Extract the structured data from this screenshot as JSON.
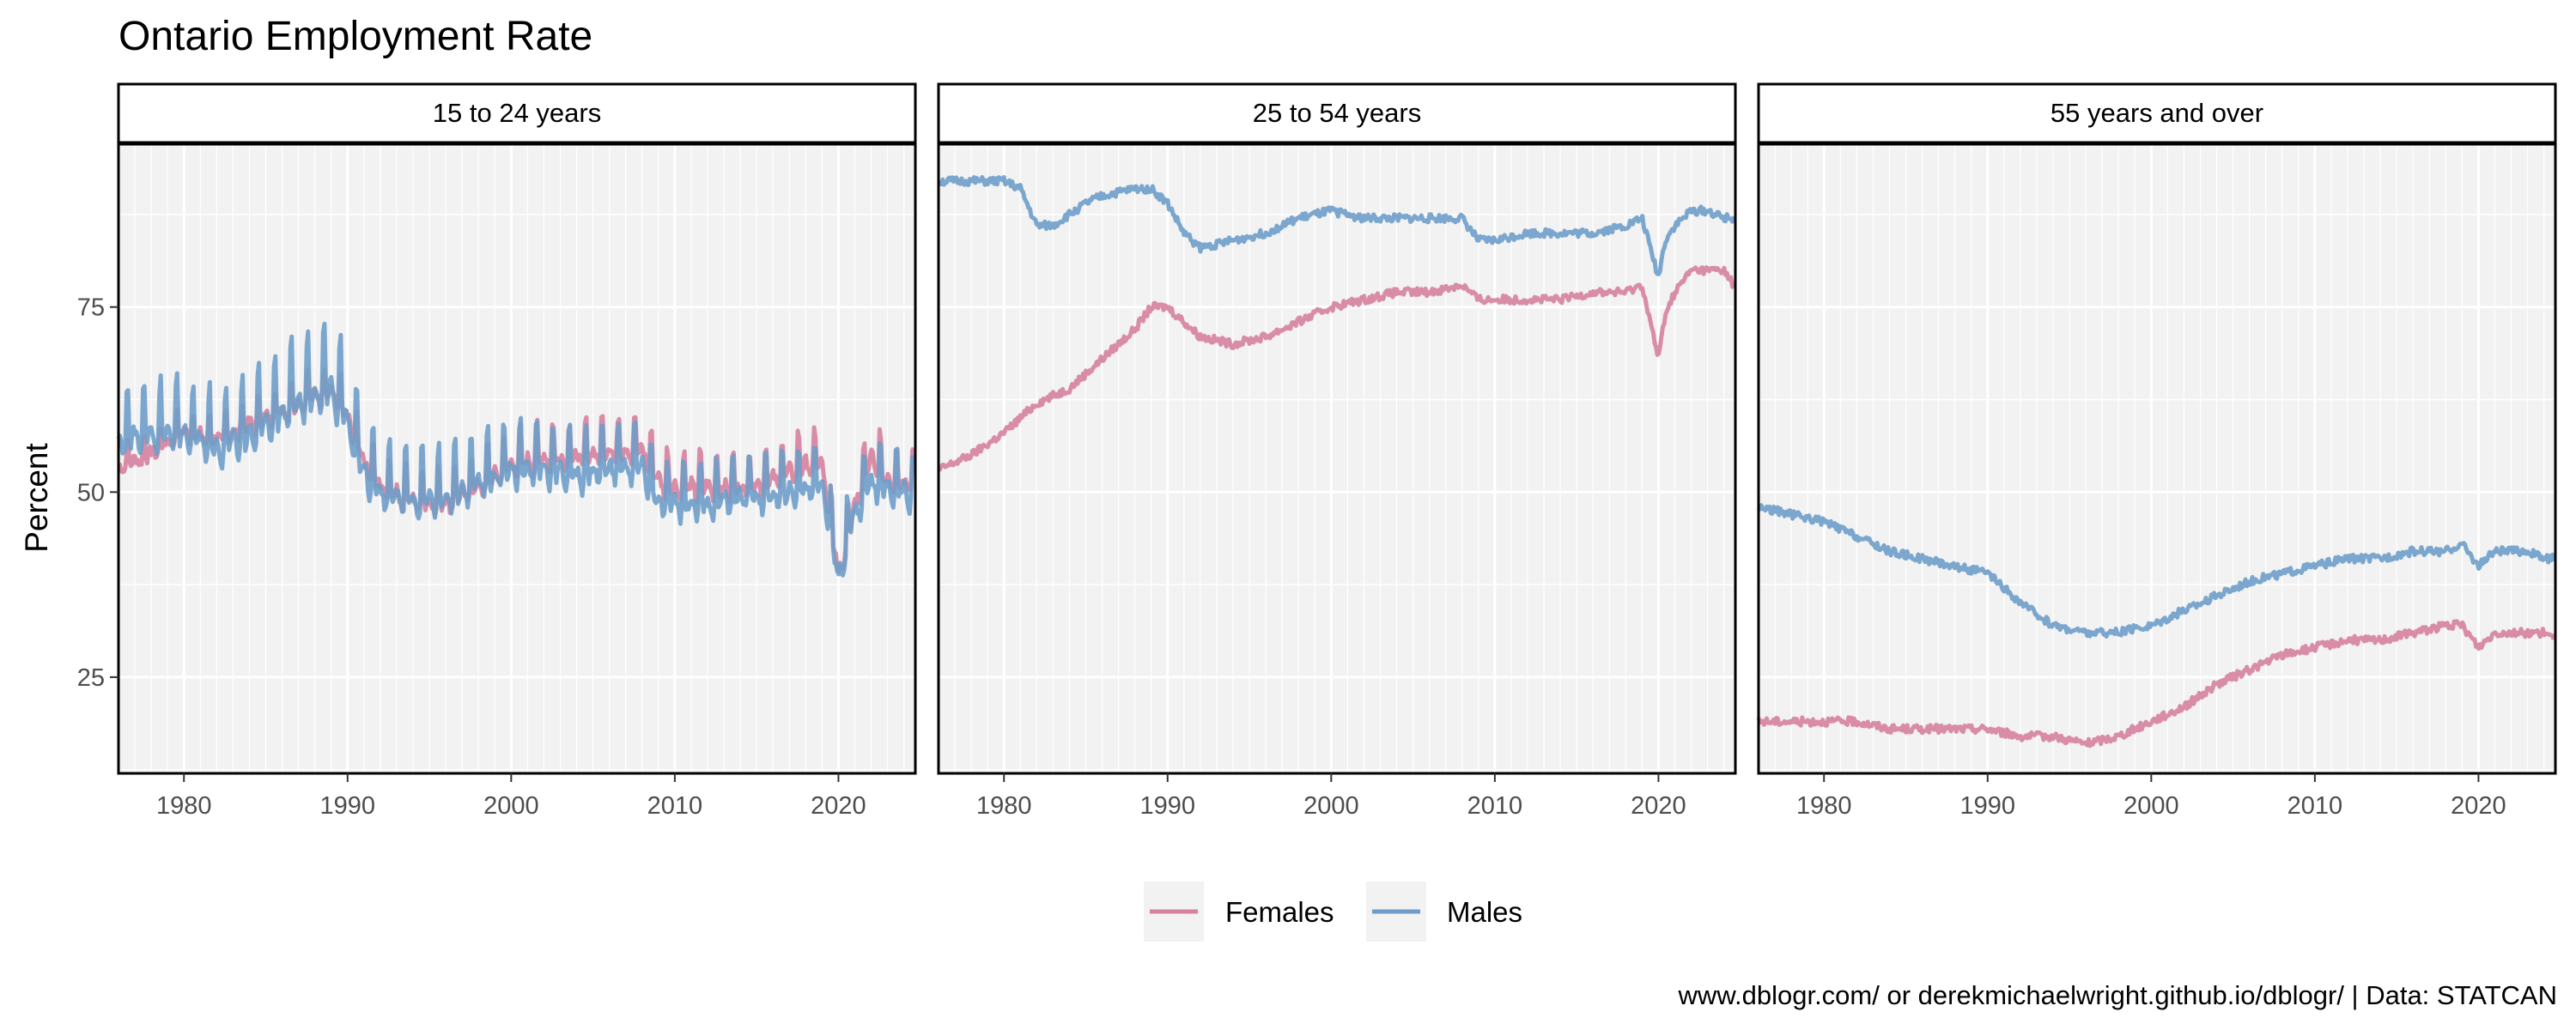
{
  "chart_data": {
    "type": "line",
    "title": "Ontario Employment Rate",
    "ylabel": "Percent",
    "xlabel": "",
    "caption": "www.dblogr.com/ or derekmichaelwright.github.io/dblogr/ | Data: STATCAN",
    "xlim": [
      1976,
      2024.7
    ],
    "ylim": [
      12,
      97
    ],
    "x_ticks": [
      1980,
      1990,
      2000,
      2010,
      2020
    ],
    "y_ticks": [
      25,
      50,
      75
    ],
    "grid": true,
    "legend_position": "bottom",
    "colors": {
      "Females": "#d6819f",
      "Males": "#6e9dc9",
      "panel_bg": "#f2f2f2",
      "grid": "#ffffff"
    },
    "legend": [
      "Females",
      "Males"
    ],
    "facets": [
      {
        "label": "15 to 24 years",
        "seasonal": true,
        "series": [
          {
            "name": "Females",
            "points": [
              [
                1976,
                54
              ],
              [
                1978,
                56
              ],
              [
                1980,
                59
              ],
              [
                1982,
                58
              ],
              [
                1984,
                60
              ],
              [
                1986,
                62
              ],
              [
                1988,
                64
              ],
              [
                1989,
                65
              ],
              [
                1990,
                61
              ],
              [
                1991,
                55
              ],
              [
                1992,
                52
              ],
              [
                1994,
                50
              ],
              [
                1996,
                50
              ],
              [
                1998,
                52
              ],
              [
                2000,
                55
              ],
              [
                2002,
                56
              ],
              [
                2004,
                56
              ],
              [
                2006,
                57
              ],
              [
                2008,
                57
              ],
              [
                2009,
                53
              ],
              [
                2010,
                52
              ],
              [
                2012,
                52
              ],
              [
                2014,
                52
              ],
              [
                2016,
                53
              ],
              [
                2018,
                55
              ],
              [
                2019,
                55
              ],
              [
                2020,
                40
              ],
              [
                2021,
                50
              ],
              [
                2022,
                56
              ],
              [
                2023,
                53
              ],
              [
                2024,
                52
              ],
              [
                2024.6,
                53
              ]
            ],
            "amplitude": [
              [
                1976,
                2.5
              ],
              [
                1990,
                4
              ],
              [
                1995,
                5
              ],
              [
                2010,
                5
              ],
              [
                2024.6,
                5
              ]
            ]
          },
          {
            "name": "Males",
            "points": [
              [
                1976,
                59
              ],
              [
                1978,
                60
              ],
              [
                1980,
                60
              ],
              [
                1982,
                58
              ],
              [
                1984,
                60
              ],
              [
                1986,
                63
              ],
              [
                1988,
                66
              ],
              [
                1989,
                67
              ],
              [
                1990,
                62
              ],
              [
                1991,
                55
              ],
              [
                1992,
                52
              ],
              [
                1994,
                51
              ],
              [
                1996,
                51
              ],
              [
                1998,
                53
              ],
              [
                2000,
                55
              ],
              [
                2002,
                55
              ],
              [
                2004,
                54
              ],
              [
                2006,
                55
              ],
              [
                2008,
                55
              ],
              [
                2009,
                50
              ],
              [
                2010,
                50
              ],
              [
                2012,
                50
              ],
              [
                2014,
                51
              ],
              [
                2016,
                51
              ],
              [
                2018,
                52
              ],
              [
                2019,
                53
              ],
              [
                2020,
                40
              ],
              [
                2021,
                49
              ],
              [
                2022,
                53
              ],
              [
                2023,
                52
              ],
              [
                2024,
                52
              ],
              [
                2024.6,
                51
              ]
            ],
            "amplitude": [
              [
                1976,
                7
              ],
              [
                1986,
                9
              ],
              [
                1989,
                10
              ],
              [
                1991,
                8
              ],
              [
                2000,
                7
              ],
              [
                2010,
                6
              ],
              [
                2024.6,
                6
              ]
            ]
          }
        ]
      },
      {
        "label": "25 to 54 years",
        "seasonal": false,
        "series": [
          {
            "name": "Females",
            "points": [
              [
                1976,
                53
              ],
              [
                1978,
                55
              ],
              [
                1980,
                58
              ],
              [
                1982,
                62
              ],
              [
                1984,
                64
              ],
              [
                1986,
                68
              ],
              [
                1988,
                72
              ],
              [
                1989,
                75
              ],
              [
                1990,
                75
              ],
              [
                1991,
                73
              ],
              [
                1992,
                71
              ],
              [
                1994,
                70
              ],
              [
                1996,
                71
              ],
              [
                1998,
                73
              ],
              [
                2000,
                75
              ],
              [
                2002,
                76
              ],
              [
                2004,
                77
              ],
              [
                2006,
                77
              ],
              [
                2008,
                78
              ],
              [
                2009,
                76
              ],
              [
                2010,
                76
              ],
              [
                2012,
                76
              ],
              [
                2014,
                76
              ],
              [
                2016,
                77
              ],
              [
                2018,
                77
              ],
              [
                2019,
                78
              ],
              [
                2020,
                68
              ],
              [
                2020.4,
                74
              ],
              [
                2021,
                77
              ],
              [
                2022,
                80
              ],
              [
                2023,
                80
              ],
              [
                2024,
                80
              ],
              [
                2024.6,
                78
              ]
            ]
          },
          {
            "name": "Males",
            "points": [
              [
                1976,
                92
              ],
              [
                1978,
                92
              ],
              [
                1980,
                92
              ],
              [
                1981,
                91
              ],
              [
                1982,
                86
              ],
              [
                1983,
                86
              ],
              [
                1985,
                89
              ],
              [
                1986,
                90
              ],
              [
                1988,
                91
              ],
              [
                1989,
                91
              ],
              [
                1990,
                89
              ],
              [
                1991,
                85
              ],
              [
                1992,
                83
              ],
              [
                1994,
                84
              ],
              [
                1996,
                85
              ],
              [
                1998,
                87
              ],
              [
                2000,
                88
              ],
              [
                2002,
                87
              ],
              [
                2004,
                87
              ],
              [
                2006,
                87
              ],
              [
                2008,
                87
              ],
              [
                2009,
                84
              ],
              [
                2010,
                84
              ],
              [
                2012,
                85
              ],
              [
                2014,
                85
              ],
              [
                2016,
                85
              ],
              [
                2018,
                86
              ],
              [
                2019,
                87
              ],
              [
                2020,
                79
              ],
              [
                2020.4,
                84
              ],
              [
                2021,
                86
              ],
              [
                2022,
                88
              ],
              [
                2023,
                88
              ],
              [
                2024,
                87
              ],
              [
                2024.6,
                87
              ]
            ]
          }
        ]
      },
      {
        "label": "55 years and over",
        "seasonal": false,
        "series": [
          {
            "name": "Females",
            "points": [
              [
                1976,
                19
              ],
              [
                1978,
                19
              ],
              [
                1980,
                19
              ],
              [
                1982,
                19
              ],
              [
                1984,
                18
              ],
              [
                1986,
                18
              ],
              [
                1988,
                18
              ],
              [
                1990,
                18
              ],
              [
                1992,
                17
              ],
              [
                1994,
                17
              ],
              [
                1996,
                16
              ],
              [
                1998,
                17
              ],
              [
                2000,
                19
              ],
              [
                2002,
                21
              ],
              [
                2004,
                24
              ],
              [
                2006,
                26
              ],
              [
                2008,
                28
              ],
              [
                2010,
                29
              ],
              [
                2012,
                30
              ],
              [
                2014,
                30
              ],
              [
                2016,
                31
              ],
              [
                2018,
                32
              ],
              [
                2019,
                32
              ],
              [
                2020,
                29
              ],
              [
                2021,
                31
              ],
              [
                2022,
                31
              ],
              [
                2023,
                31
              ],
              [
                2024,
                31
              ],
              [
                2024.6,
                30
              ]
            ]
          },
          {
            "name": "Males",
            "points": [
              [
                1976,
                48
              ],
              [
                1978,
                47
              ],
              [
                1980,
                46
              ],
              [
                1982,
                44
              ],
              [
                1984,
                42
              ],
              [
                1986,
                41
              ],
              [
                1988,
                40
              ],
              [
                1990,
                39
              ],
              [
                1992,
                35
              ],
              [
                1994,
                32
              ],
              [
                1996,
                31
              ],
              [
                1998,
                31
              ],
              [
                2000,
                32
              ],
              [
                2002,
                34
              ],
              [
                2004,
                36
              ],
              [
                2006,
                38
              ],
              [
                2008,
                39
              ],
              [
                2010,
                40
              ],
              [
                2012,
                41
              ],
              [
                2014,
                41
              ],
              [
                2016,
                42
              ],
              [
                2018,
                42
              ],
              [
                2019,
                43
              ],
              [
                2020,
                40
              ],
              [
                2021,
                42
              ],
              [
                2022,
                42
              ],
              [
                2023,
                42
              ],
              [
                2024,
                41
              ],
              [
                2024.6,
                41
              ]
            ]
          }
        ]
      }
    ]
  }
}
